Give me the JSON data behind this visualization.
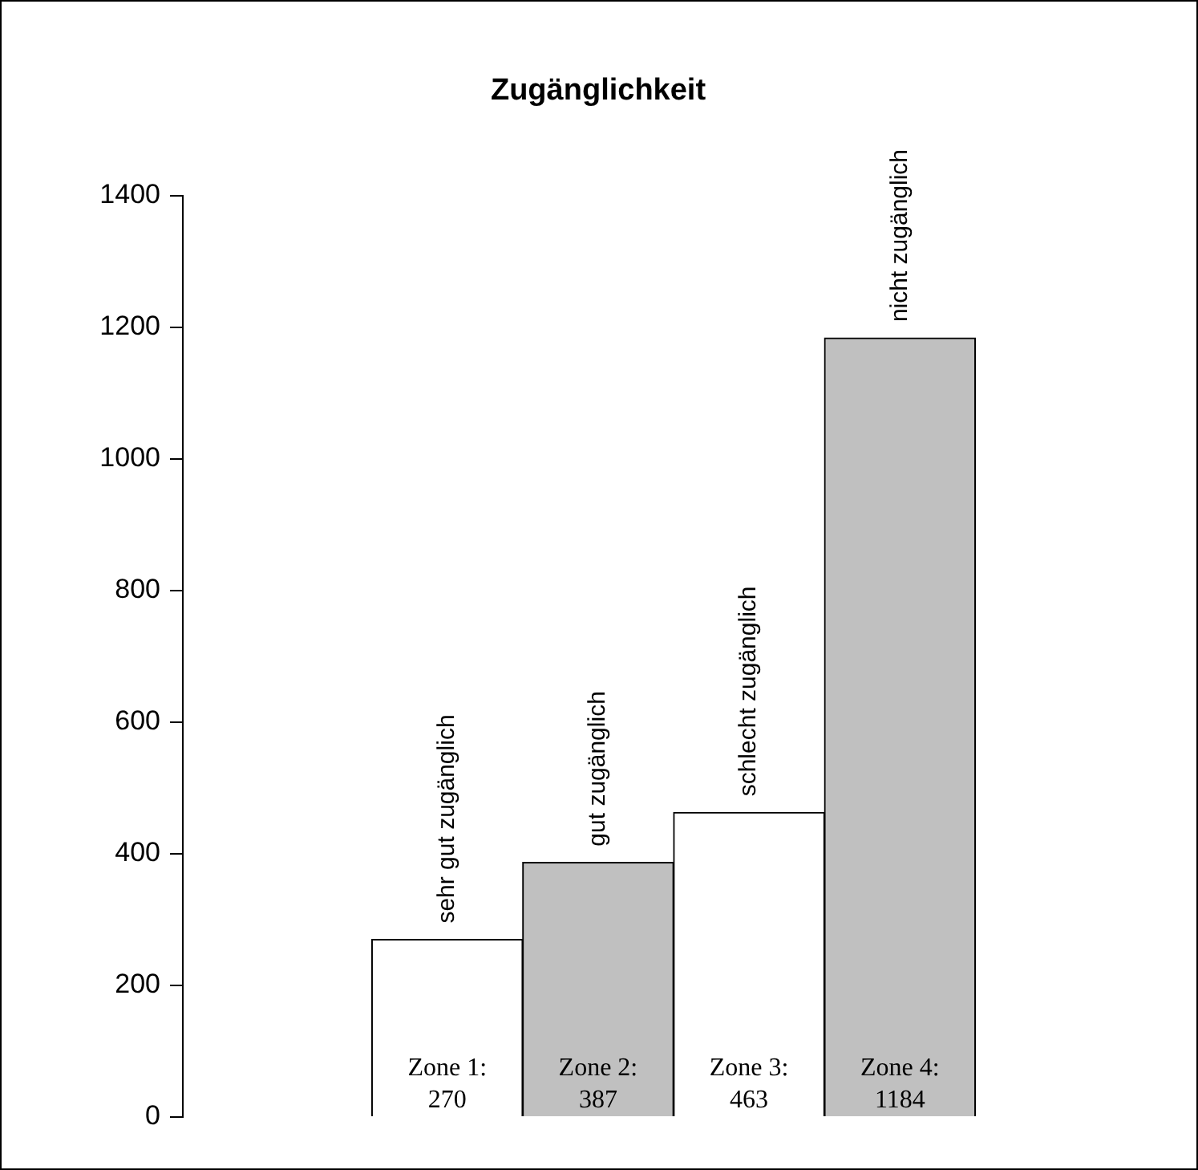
{
  "chart_data": {
    "type": "bar",
    "title": "Zugänglichkeit",
    "categories": [
      "sehr gut zugänglich",
      "gut zugänglich",
      "schlecht zugänglich",
      "nicht zugänglich"
    ],
    "values": [
      270,
      387,
      463,
      1184
    ],
    "colors": [
      "#ffffff",
      "#c0c0c0",
      "#ffffff",
      "#c0c0c0"
    ],
    "value_labels": [
      "Zone 1: 270",
      "Zone 2: 387",
      "Zone 3: 463",
      "Zone 4: 1184"
    ],
    "ylim": [
      0,
      1400
    ],
    "yticks": [
      0,
      200,
      400,
      600,
      800,
      1000,
      1200,
      1400
    ],
    "grid": false,
    "legend": false
  }
}
